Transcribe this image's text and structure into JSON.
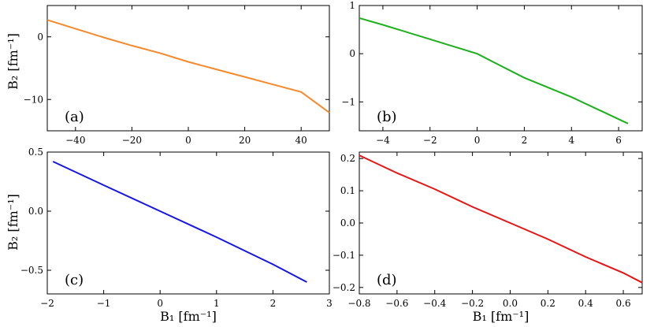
{
  "chart_data": [
    {
      "type": "line",
      "panel_label": "(a)",
      "xlim": [
        -50,
        50
      ],
      "ylim": [
        -15,
        5
      ],
      "xticks": [
        -40,
        -20,
        0,
        20,
        40
      ],
      "yticks": [
        0,
        -10
      ],
      "xtick_labels": [
        "−40",
        "−20",
        "0",
        "20",
        "40"
      ],
      "ytick_labels": [
        "0",
        "−10"
      ],
      "color": "#f5892b",
      "series": [
        {
          "x": [
            -50,
            -40,
            -30,
            -20,
            -10,
            0,
            10,
            20,
            30,
            40,
            50
          ],
          "y": [
            2.7,
            1.3,
            -0.1,
            -1.4,
            -2.6,
            -4.0,
            -5.2,
            -6.4,
            -7.6,
            -8.8,
            -12.1
          ]
        }
      ]
    },
    {
      "type": "line",
      "panel_label": "(b)",
      "xlim": [
        -5,
        7
      ],
      "ylim": [
        -1.6,
        1.0
      ],
      "xticks": [
        -4,
        -2,
        0,
        2,
        4,
        6
      ],
      "yticks": [
        1,
        0,
        -1
      ],
      "xtick_labels": [
        "−4",
        "−2",
        "0",
        "2",
        "4",
        "6"
      ],
      "ytick_labels": [
        "1",
        "0",
        "−1"
      ],
      "color": "#1db01d",
      "series": [
        {
          "x": [
            -5,
            -4,
            -2,
            0,
            2,
            4,
            6.4
          ],
          "y": [
            0.74,
            0.6,
            0.3,
            0.0,
            -0.5,
            -0.9,
            -1.45
          ]
        }
      ]
    },
    {
      "type": "line",
      "panel_label": "(c)",
      "xlim": [
        -2,
        3
      ],
      "ylim": [
        -0.7,
        0.5
      ],
      "xticks": [
        -2,
        -1,
        0,
        1,
        2,
        3
      ],
      "yticks": [
        0.5,
        0.0,
        -0.5
      ],
      "xtick_labels": [
        "−2",
        "−1",
        "0",
        "1",
        "2",
        "3"
      ],
      "ytick_labels": [
        "0.5",
        "0.0",
        "−0.5"
      ],
      "xlabel": "B₁ [fm⁻¹]",
      "color": "#1515e6",
      "series": [
        {
          "x": [
            -1.9,
            -1,
            0,
            1,
            2,
            2.6
          ],
          "y": [
            0.42,
            0.22,
            0.0,
            -0.22,
            -0.45,
            -0.6
          ]
        }
      ]
    },
    {
      "type": "line",
      "panel_label": "(d)",
      "xlim": [
        -0.8,
        0.7
      ],
      "ylim": [
        -0.22,
        0.22
      ],
      "xticks": [
        -0.8,
        -0.6,
        -0.4,
        -0.2,
        0.0,
        0.2,
        0.4,
        0.6
      ],
      "yticks": [
        0.2,
        0.1,
        0.0,
        -0.1,
        -0.2
      ],
      "xtick_labels": [
        "−0.8",
        "−0.6",
        "−0.4",
        "−0.2",
        "0.0",
        "0.2",
        "0.4",
        "0.6"
      ],
      "ytick_labels": [
        "0.2",
        "0.1",
        "0.0",
        "−0.1",
        "−0.2"
      ],
      "xlabel": "B₁ [fm⁻¹]",
      "color": "#e61414",
      "series": [
        {
          "x": [
            -0.8,
            -0.6,
            -0.4,
            -0.2,
            0.0,
            0.2,
            0.4,
            0.6,
            0.7
          ],
          "y": [
            0.21,
            0.155,
            0.105,
            0.05,
            0.0,
            -0.05,
            -0.105,
            -0.155,
            -0.185
          ]
        }
      ]
    }
  ],
  "ylabel": "B₂ [fm⁻¹]"
}
